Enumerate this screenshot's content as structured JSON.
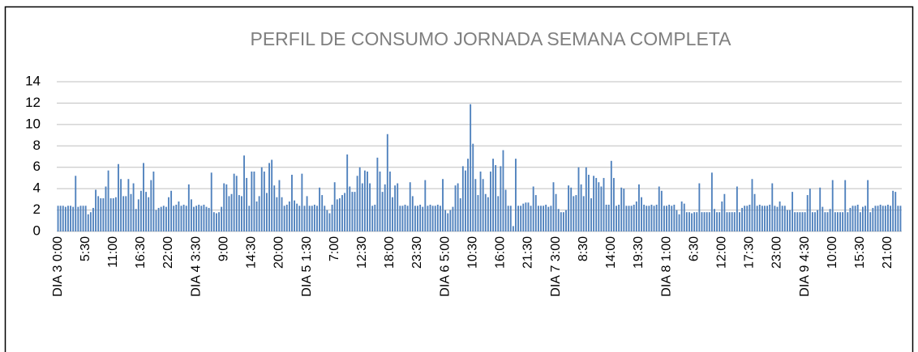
{
  "chart_data": {
    "type": "bar",
    "title": "PERFIL DE CONSUMO JORNADA SEMANA COMPLETA",
    "categories": [
      "DIA 3  0:00",
      null,
      null,
      null,
      null,
      null,
      null,
      null,
      null,
      null,
      null,
      "5:30",
      null,
      null,
      null,
      null,
      null,
      null,
      null,
      null,
      null,
      null,
      "11:00",
      null,
      null,
      null,
      null,
      null,
      null,
      null,
      null,
      null,
      null,
      "16:30",
      null,
      null,
      null,
      null,
      null,
      null,
      null,
      null,
      null,
      null,
      "22:00",
      null,
      null,
      null,
      null,
      null,
      null,
      null,
      null,
      null,
      null,
      "DIA 4 3:30",
      null,
      null,
      null,
      null,
      null,
      null,
      null,
      null,
      null,
      null,
      "9:00",
      null,
      null,
      null,
      null,
      null,
      null,
      null,
      null,
      null,
      null,
      "14:30",
      null,
      null,
      null,
      null,
      null,
      null,
      null,
      null,
      null,
      null,
      "20:00",
      null,
      null,
      null,
      null,
      null,
      null,
      null,
      null,
      null,
      null,
      "DIA 5  1:30",
      null,
      null,
      null,
      null,
      null,
      null,
      null,
      null,
      null,
      null,
      "7:00",
      null,
      null,
      null,
      null,
      null,
      null,
      null,
      null,
      null,
      null,
      "12:30",
      null,
      null,
      null,
      null,
      null,
      null,
      null,
      null,
      null,
      null,
      "18:00",
      null,
      null,
      null,
      null,
      null,
      null,
      null,
      null,
      null,
      null,
      "23:30",
      null,
      null,
      null,
      null,
      null,
      null,
      null,
      null,
      null,
      null,
      "DIA 6 5:00",
      null,
      null,
      null,
      null,
      null,
      null,
      null,
      null,
      null,
      null,
      "10:30",
      null,
      null,
      null,
      null,
      null,
      null,
      null,
      null,
      null,
      null,
      "16:00",
      null,
      null,
      null,
      null,
      null,
      null,
      null,
      null,
      null,
      null,
      "21:30",
      null,
      null,
      null,
      null,
      null,
      null,
      null,
      null,
      null,
      null,
      "DIA 7  3:00",
      null,
      null,
      null,
      null,
      null,
      null,
      null,
      null,
      null,
      null,
      "8:30",
      null,
      null,
      null,
      null,
      null,
      null,
      null,
      null,
      null,
      null,
      "14:00",
      null,
      null,
      null,
      null,
      null,
      null,
      null,
      null,
      null,
      null,
      "19:30",
      null,
      null,
      null,
      null,
      null,
      null,
      null,
      null,
      null,
      null,
      "DIA 8  1:00",
      null,
      null,
      null,
      null,
      null,
      null,
      null,
      null,
      null,
      null,
      "6:30",
      null,
      null,
      null,
      null,
      null,
      null,
      null,
      null,
      null,
      null,
      "12:00",
      null,
      null,
      null,
      null,
      null,
      null,
      null,
      null,
      null,
      null,
      "17:30",
      null,
      null,
      null,
      null,
      null,
      null,
      null,
      null,
      null,
      null,
      "23:00",
      null,
      null,
      null,
      null,
      null,
      null,
      null,
      null,
      null,
      null,
      "DIA 9  4:30",
      null,
      null,
      null,
      null,
      null,
      null,
      null,
      null,
      null,
      null,
      "10:00",
      null,
      null,
      null,
      null,
      null,
      null,
      null,
      null,
      null,
      null,
      "15:30",
      null,
      null,
      null,
      null,
      null,
      null,
      null,
      null,
      null,
      null,
      "21:00",
      null,
      null,
      null,
      null,
      null
    ],
    "values": [
      2.4,
      2.4,
      2.4,
      2.3,
      2.4,
      2.4,
      2.3,
      5.2,
      2.3,
      2.4,
      2.4,
      2.4,
      1.6,
      1.8,
      2.2,
      3.9,
      3.3,
      3.1,
      3.1,
      4.2,
      5.7,
      3.1,
      3.1,
      3.2,
      6.3,
      4.9,
      3.3,
      3.3,
      4.9,
      3.5,
      4.5,
      2.1,
      3.0,
      3.8,
      6.4,
      3.7,
      3.2,
      4.8,
      5.6,
      2.0,
      2.2,
      2.3,
      2.4,
      2.3,
      3.2,
      3.8,
      2.4,
      2.5,
      2.8,
      2.4,
      2.5,
      2.4,
      4.4,
      3.0,
      2.3,
      2.4,
      2.5,
      2.4,
      2.5,
      2.3,
      2.2,
      5.5,
      1.8,
      1.7,
      1.8,
      2.3,
      4.5,
      4.4,
      3.3,
      3.5,
      5.4,
      5.2,
      3.4,
      3.3,
      7.1,
      5.0,
      2.4,
      5.6,
      5.6,
      2.8,
      3.3,
      6.0,
      5.6,
      3.6,
      6.4,
      6.7,
      4.3,
      3.2,
      4.8,
      3.2,
      2.4,
      2.5,
      2.8,
      5.3,
      2.9,
      2.6,
      2.4,
      5.4,
      2.4,
      3.3,
      2.4,
      2.4,
      2.5,
      2.4,
      4.1,
      3.4,
      2.4,
      2.0,
      1.7,
      2.5,
      4.6,
      3.0,
      3.1,
      3.4,
      3.6,
      7.2,
      4.2,
      3.7,
      3.7,
      5.2,
      6.0,
      4.5,
      5.7,
      5.6,
      4.5,
      2.4,
      2.5,
      6.9,
      5.6,
      3.7,
      4.4,
      9.1,
      5.6,
      3.2,
      4.3,
      4.5,
      2.4,
      2.4,
      2.5,
      2.4,
      4.6,
      3.3,
      2.4,
      2.4,
      2.5,
      2.3,
      4.8,
      2.4,
      2.5,
      2.4,
      2.4,
      2.5,
      2.4,
      4.9,
      2.0,
      1.7,
      2.0,
      2.3,
      4.3,
      4.5,
      3.1,
      6.1,
      5.7,
      6.8,
      11.9,
      8.2,
      4.9,
      3.4,
      5.6,
      4.9,
      3.5,
      3.2,
      5.6,
      6.8,
      6.2,
      3.3,
      6.1,
      7.6,
      3.9,
      2.4,
      2.4,
      0.5,
      6.8,
      2.4,
      2.4,
      2.6,
      2.7,
      2.7,
      2.4,
      4.2,
      3.4,
      2.4,
      2.4,
      2.4,
      2.5,
      2.3,
      2.4,
      4.6,
      3.5,
      2.1,
      1.8,
      1.8,
      2.0,
      4.3,
      4.1,
      3.3,
      3.4,
      6.0,
      4.4,
      3.3,
      6.0,
      5.3,
      3.1,
      5.2,
      5.0,
      4.6,
      4.2,
      5.0,
      2.5,
      2.5,
      6.6,
      5.0,
      2.4,
      2.5,
      4.1,
      4.0,
      2.4,
      2.4,
      2.4,
      2.5,
      2.8,
      4.4,
      3.2,
      2.5,
      2.4,
      2.4,
      2.5,
      2.4,
      2.5,
      4.2,
      3.8,
      2.4,
      2.4,
      2.5,
      2.4,
      2.5,
      2.0,
      1.6,
      2.8,
      2.6,
      1.8,
      1.8,
      1.7,
      1.8,
      1.8,
      4.5,
      1.8,
      1.8,
      1.8,
      1.8,
      5.5,
      2.1,
      1.8,
      1.8,
      2.8,
      3.5,
      1.8,
      1.8,
      1.8,
      1.8,
      4.2,
      1.8,
      2.2,
      2.4,
      2.4,
      2.5,
      4.9,
      3.5,
      2.4,
      2.5,
      2.4,
      2.4,
      2.4,
      2.5,
      4.5,
      2.4,
      2.3,
      2.8,
      2.4,
      2.4,
      2.0,
      2.0,
      3.7,
      1.8,
      1.8,
      1.8,
      1.8,
      1.8,
      3.4,
      4.0,
      1.8,
      1.8,
      2.0,
      4.1,
      2.3,
      1.8,
      1.8,
      2.1,
      4.8,
      1.8,
      1.8,
      1.8,
      1.8,
      4.8,
      1.8,
      2.2,
      2.4,
      2.4,
      2.5,
      1.8,
      2.3,
      2.4,
      4.8,
      1.8,
      2.2,
      2.4,
      2.4,
      2.5,
      2.4,
      2.4,
      2.5,
      2.4,
      3.8,
      3.7,
      2.4,
      2.4
    ],
    "color": "#4f81bd",
    "ylim": [
      0,
      14
    ],
    "yticks": [
      0,
      2,
      4,
      6,
      8,
      10,
      12,
      14
    ],
    "grid": true
  }
}
